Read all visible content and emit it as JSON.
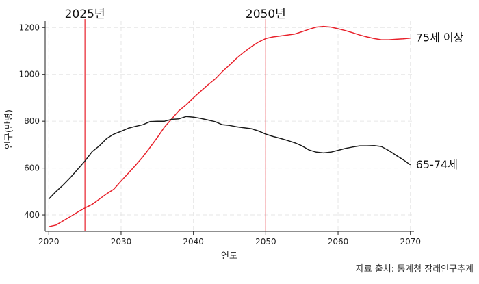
{
  "chart_data": {
    "type": "line",
    "xlabel": "연도",
    "ylabel": "인구(만명)",
    "xlim": [
      2019.5,
      2070.5
    ],
    "ylim": [
      330,
      1230
    ],
    "xticks": [
      2020,
      2030,
      2040,
      2050,
      2060,
      2070
    ],
    "yticks": [
      400,
      600,
      800,
      1000,
      1200
    ],
    "xtick_labels": [
      "2020",
      "2030",
      "2040",
      "2050",
      "2060",
      "2070"
    ],
    "ytick_labels": [
      "400",
      "600",
      "800",
      "1000",
      "1200"
    ],
    "grid": true,
    "series": [
      {
        "name": "75세 이상",
        "color": "#e8202a",
        "x": [
          2020,
          2021,
          2022,
          2023,
          2024,
          2025,
          2026,
          2027,
          2028,
          2029,
          2030,
          2031,
          2032,
          2033,
          2034,
          2035,
          2036,
          2037,
          2038,
          2039,
          2040,
          2041,
          2042,
          2043,
          2044,
          2045,
          2046,
          2047,
          2048,
          2049,
          2050,
          2051,
          2052,
          2053,
          2054,
          2055,
          2056,
          2057,
          2058,
          2059,
          2060,
          2061,
          2062,
          2063,
          2064,
          2065,
          2066,
          2067,
          2068,
          2069,
          2070
        ],
        "values": [
          350,
          357,
          375,
          393,
          412,
          430,
          445,
          468,
          490,
          510,
          545,
          578,
          612,
          648,
          688,
          730,
          775,
          810,
          845,
          870,
          900,
          928,
          955,
          980,
          1012,
          1040,
          1070,
          1095,
          1118,
          1138,
          1153,
          1160,
          1164,
          1168,
          1172,
          1182,
          1193,
          1202,
          1205,
          1202,
          1195,
          1187,
          1178,
          1168,
          1160,
          1153,
          1148,
          1148,
          1150,
          1152,
          1155
        ]
      },
      {
        "name": "65-74세",
        "color": "#1a1a1a",
        "x": [
          2020,
          2021,
          2022,
          2023,
          2024,
          2025,
          2026,
          2027,
          2028,
          2029,
          2030,
          2031,
          2032,
          2033,
          2034,
          2035,
          2036,
          2037,
          2038,
          2039,
          2040,
          2041,
          2042,
          2043,
          2044,
          2045,
          2046,
          2047,
          2048,
          2049,
          2050,
          2051,
          2052,
          2053,
          2054,
          2055,
          2056,
          2057,
          2058,
          2059,
          2060,
          2061,
          2062,
          2063,
          2064,
          2065,
          2066,
          2067,
          2068,
          2069,
          2070
        ],
        "values": [
          468,
          500,
          528,
          560,
          595,
          630,
          670,
          695,
          726,
          745,
          757,
          770,
          778,
          785,
          798,
          800,
          800,
          808,
          810,
          820,
          817,
          812,
          805,
          798,
          785,
          782,
          776,
          772,
          768,
          758,
          745,
          735,
          727,
          718,
          708,
          695,
          677,
          668,
          665,
          668,
          676,
          684,
          690,
          695,
          695,
          696,
          692,
          675,
          655,
          636,
          614
        ]
      }
    ],
    "vlines": [
      {
        "x": 2025,
        "label": "2025년",
        "color": "#e8202a"
      },
      {
        "x": 2050,
        "label": "2050년",
        "color": "#e8202a"
      }
    ],
    "annotations": {
      "source": "자료 출처: 통계청 장래인구추계"
    }
  }
}
